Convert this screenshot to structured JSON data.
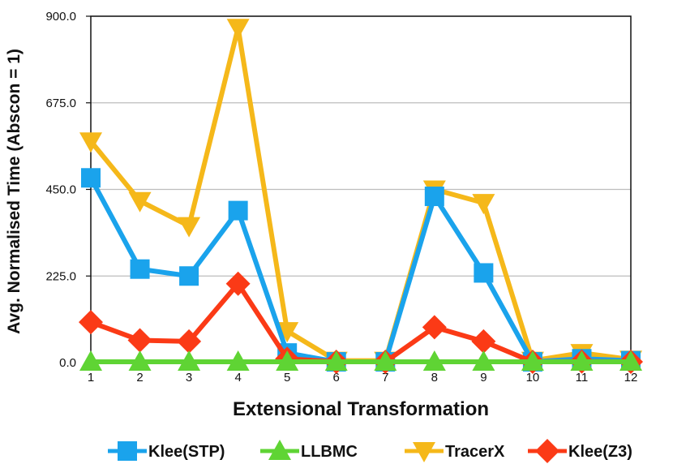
{
  "chart_data": {
    "type": "line",
    "title": "",
    "xlabel": "Extensional Transformation",
    "ylabel": "Avg. Normalised Time (Abscon = 1)",
    "x": [
      1,
      2,
      3,
      4,
      5,
      6,
      7,
      8,
      9,
      10,
      11,
      12
    ],
    "x_tick_labels": [
      "1",
      "2",
      "3",
      "4",
      "5",
      "6",
      "7",
      "8",
      "9",
      "10",
      "11",
      "12"
    ],
    "ylim": [
      0,
      900
    ],
    "y_ticks": [
      0,
      225,
      450,
      675,
      900
    ],
    "y_tick_labels": [
      "0.0",
      "225.0",
      "450.0",
      "675.0",
      "900.0"
    ],
    "grid": true,
    "legend_position": "bottom",
    "series": [
      {
        "name": "Klee(STP)",
        "color": "#1aa3ec",
        "marker": "square",
        "values": [
          480,
          243,
          225,
          395,
          25,
          2,
          2,
          432,
          233,
          2,
          10,
          5
        ]
      },
      {
        "name": "LLBMC",
        "color": "#5fd434",
        "marker": "triangle-up",
        "values": [
          2,
          2,
          2,
          2,
          2,
          2,
          2,
          2,
          2,
          2,
          2,
          2
        ]
      },
      {
        "name": "TracerX",
        "color": "#f5b81a",
        "marker": "triangle-down",
        "values": [
          575,
          420,
          355,
          870,
          82,
          5,
          5,
          450,
          415,
          5,
          25,
          8
        ]
      },
      {
        "name": "Klee(Z3)",
        "color": "#fb3a16",
        "marker": "diamond",
        "values": [
          105,
          58,
          55,
          205,
          10,
          2,
          2,
          92,
          55,
          2,
          3,
          2
        ]
      }
    ]
  }
}
